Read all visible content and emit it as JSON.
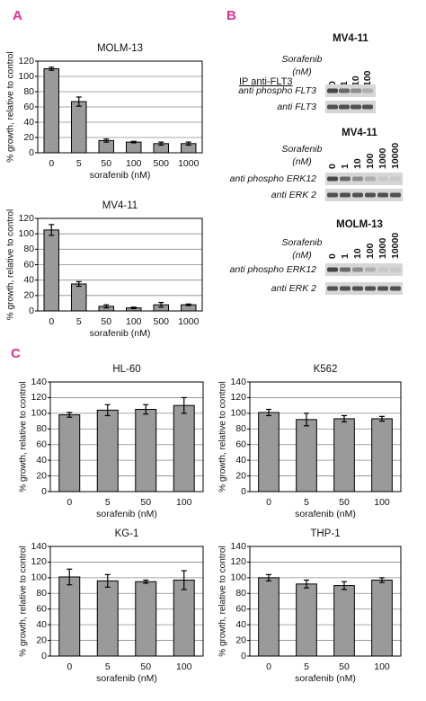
{
  "panel_labels": [
    "A",
    "B",
    "C"
  ],
  "chart_data": [
    {
      "type": "bar",
      "title": "MOLM-13",
      "x_label": "sorafenib (nM)",
      "y_label": "% growth, relative to control",
      "categories": [
        "0",
        "5",
        "50",
        "100",
        "500",
        "1000"
      ],
      "values": [
        110,
        67,
        16,
        14,
        12,
        12
      ],
      "errors": [
        2,
        6,
        2,
        1,
        2,
        2
      ],
      "color": "#9a9a9a",
      "ylim": [
        0,
        120
      ],
      "yticks": [
        0,
        20,
        40,
        60,
        80,
        100,
        120
      ],
      "grid": true
    },
    {
      "type": "bar",
      "title": "MV4-11",
      "x_label": "sorafenib (nM)",
      "y_label": "% growth, relative to control",
      "categories": [
        "0",
        "5",
        "50",
        "100",
        "500",
        "1000"
      ],
      "values": [
        105,
        35,
        6,
        4,
        8,
        8
      ],
      "errors": [
        7,
        3,
        2,
        1,
        3,
        1
      ],
      "color": "#9a9a9a",
      "ylim": [
        0,
        120
      ],
      "yticks": [
        0,
        20,
        40,
        60,
        80,
        100,
        120
      ],
      "grid": true
    },
    {
      "type": "bar",
      "title": "HL-60",
      "x_label": "sorafenib (nM)",
      "y_label": "% growth, relative to control",
      "categories": [
        "0",
        "5",
        "50",
        "100"
      ],
      "values": [
        98,
        104,
        105,
        110
      ],
      "errors": [
        3,
        7,
        6,
        10
      ],
      "color": "#9a9a9a",
      "ylim": [
        0,
        140
      ],
      "yticks": [
        0,
        20,
        40,
        60,
        80,
        100,
        120,
        140
      ],
      "grid": true
    },
    {
      "type": "bar",
      "title": "K562",
      "x_label": "sorafenib (nM)",
      "y_label": "% growth, relative to control",
      "categories": [
        "0",
        "5",
        "50",
        "100"
      ],
      "values": [
        101,
        92,
        93,
        93
      ],
      "errors": [
        4,
        8,
        4,
        3
      ],
      "color": "#9a9a9a",
      "ylim": [
        0,
        140
      ],
      "yticks": [
        0,
        20,
        40,
        60,
        80,
        100,
        120,
        140
      ],
      "grid": true
    },
    {
      "type": "bar",
      "title": "KG-1",
      "x_label": "sorafenib (nM)",
      "y_label": "% growth, relative to control",
      "categories": [
        "0",
        "5",
        "50",
        "100"
      ],
      "values": [
        101,
        96,
        95,
        97
      ],
      "errors": [
        10,
        8,
        2,
        12
      ],
      "color": "#9a9a9a",
      "ylim": [
        0,
        140
      ],
      "yticks": [
        0,
        20,
        40,
        60,
        80,
        100,
        120,
        140
      ],
      "grid": true
    },
    {
      "type": "bar",
      "title": "THP-1",
      "x_label": "sorafenib (nM)",
      "y_label": "% growth, relative to control",
      "categories": [
        "0",
        "5",
        "50",
        "100"
      ],
      "values": [
        100,
        92,
        90,
        97
      ],
      "errors": [
        4,
        5,
        5,
        3
      ],
      "color": "#9a9a9a",
      "ylim": [
        0,
        140
      ],
      "yticks": [
        0,
        20,
        40,
        60,
        80,
        100,
        120,
        140
      ],
      "grid": true
    }
  ],
  "blots": [
    {
      "title": "MV4-11",
      "treatment": "Sorafenib",
      "unit": "(nM)",
      "ip": "IP anti-FLT3",
      "lanes": [
        "0",
        "1",
        "10",
        "100"
      ],
      "rows": [
        "anti phospho FLT3",
        "anti FLT3"
      ]
    },
    {
      "title": "MV4-11",
      "treatment": "Sorafenib",
      "unit": "(nM)",
      "lanes": [
        "0",
        "1",
        "10",
        "100",
        "1000",
        "10000"
      ],
      "rows": [
        "anti phospho ERK12",
        "anti ERK 2"
      ]
    },
    {
      "title": "MOLM-13",
      "treatment": "Sorafenib",
      "unit": "(nM)",
      "lanes": [
        "0",
        "1",
        "10",
        "100",
        "1000",
        "10000"
      ],
      "rows": [
        "anti phospho ERK12",
        "anti ERK 2"
      ]
    }
  ]
}
